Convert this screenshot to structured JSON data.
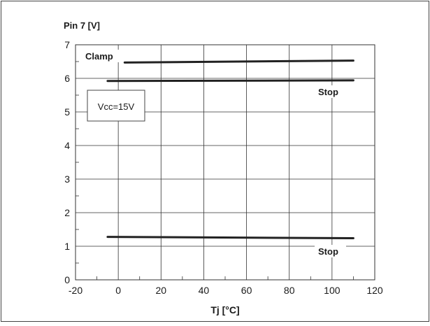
{
  "chart_data": {
    "type": "line",
    "title": "Pin 7 [V]",
    "xlabel": "Tj [°C]",
    "ylabel": "Pin 7 [V]",
    "xlim": [
      -20,
      120
    ],
    "ylim": [
      0,
      7
    ],
    "x_ticks": [
      -20,
      0,
      20,
      40,
      60,
      80,
      100,
      120
    ],
    "y_ticks": [
      0,
      1,
      2,
      3,
      4,
      5,
      6,
      7
    ],
    "grid": true,
    "annotations": [
      {
        "name": "condition-note",
        "text": "Vcc=15V"
      }
    ],
    "series": [
      {
        "name": "Clamp",
        "x": [
          3,
          110
        ],
        "y": [
          6.47,
          6.53
        ]
      },
      {
        "name": "Stop",
        "x": [
          -5,
          110
        ],
        "y": [
          5.92,
          5.94
        ]
      },
      {
        "name": "Stop",
        "x": [
          -5,
          110
        ],
        "y": [
          1.28,
          1.24
        ]
      }
    ],
    "colors": {
      "line": "#222222",
      "grid": "#333333",
      "border": "#555555"
    }
  }
}
